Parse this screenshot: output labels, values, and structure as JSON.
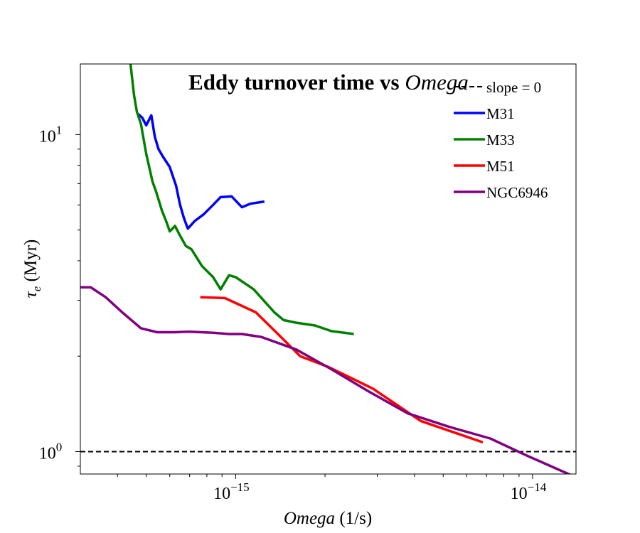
{
  "chart_data": {
    "type": "line",
    "title": "Eddy turnover time vs ",
    "title_italic": "Omega",
    "xlabel_italic": "Omega",
    "xlabel_rest": " (1/s)",
    "ylabel_sym": "τ",
    "ylabel_sub": "e",
    "ylabel_rest": " (Myr)",
    "xscale": "log",
    "yscale": "log",
    "xlim": [
      3e-16,
      1.4e-14
    ],
    "ylim": [
      0.85,
      16.7
    ],
    "x_ticks": [
      {
        "base": "10",
        "exp": "−15",
        "value": 1e-15
      },
      {
        "base": "10",
        "exp": "−14",
        "value": 1e-14
      }
    ],
    "y_ticks": [
      {
        "base": "10",
        "exp": "0",
        "value": 1
      },
      {
        "base": "10",
        "exp": "1",
        "value": 10
      }
    ],
    "legend_position": "top-right",
    "grid": false,
    "reference_line": {
      "name": "slope = 0",
      "y": 1.0,
      "color": "#000000",
      "style": "dashed"
    },
    "series": [
      {
        "name": "M31",
        "color": "#0000ff",
        "x": [
          4.7e-16,
          4.85e-16,
          5e-16,
          5.2e-16,
          5.35e-16,
          5.5e-16,
          5.7e-16,
          6e-16,
          6.3e-16,
          6.5e-16,
          6.7e-16,
          6.9e-16,
          7.3e-16,
          7.8e-16,
          8.4e-16,
          8.9e-16,
          9.7e-16,
          1.05e-15,
          1.12e-15,
          1.25e-15
        ],
        "y": [
          11.6,
          11.3,
          10.7,
          11.5,
          9.8,
          9.0,
          8.5,
          7.9,
          6.9,
          6.0,
          5.45,
          5.05,
          5.35,
          5.6,
          6.0,
          6.35,
          6.38,
          5.9,
          6.05,
          6.15
        ]
      },
      {
        "name": "M33",
        "color": "#008000",
        "x": [
          4.4e-16,
          4.55e-16,
          4.65e-16,
          4.8e-16,
          5e-16,
          5.25e-16,
          5.4e-16,
          5.65e-16,
          5.85e-16,
          6e-16,
          6.25e-16,
          6.5e-16,
          6.8e-16,
          7.1e-16,
          7.7e-16,
          8.4e-16,
          8.9e-16,
          9.5e-16,
          1e-15,
          1.15e-15,
          1.35e-15,
          1.45e-15,
          1.6e-15,
          1.85e-15,
          2.1e-15,
          2.5e-15
        ],
        "y": [
          17.5,
          13.3,
          11.8,
          10.8,
          8.7,
          7.1,
          6.6,
          5.75,
          5.3,
          4.95,
          5.15,
          4.8,
          4.45,
          4.35,
          3.85,
          3.55,
          3.25,
          3.6,
          3.55,
          3.25,
          2.75,
          2.6,
          2.55,
          2.5,
          2.4,
          2.35
        ]
      },
      {
        "name": "M51",
        "color": "#ff0000",
        "x": [
          7.6e-16,
          9.2e-16,
          1.17e-15,
          1.42e-15,
          1.65e-15,
          2.05e-15,
          2.9e-15,
          4.2e-15,
          6.8e-15
        ],
        "y": [
          3.07,
          3.05,
          2.75,
          2.3,
          2.0,
          1.85,
          1.58,
          1.25,
          1.07
        ]
      },
      {
        "name": "NGC6946",
        "color": "#800080",
        "x": [
          3e-16,
          3.25e-16,
          3.65e-16,
          4.15e-16,
          4.8e-16,
          5.45e-16,
          6.2e-16,
          7e-16,
          8.4e-16,
          9.5e-16,
          1.05e-15,
          1.22e-15,
          1.6e-15,
          2.1e-15,
          2.8e-15,
          3.8e-15,
          5.2e-15,
          7.2e-15,
          9.6e-15,
          1.4e-14
        ],
        "y": [
          3.3,
          3.3,
          3.07,
          2.75,
          2.45,
          2.38,
          2.38,
          2.39,
          2.37,
          2.35,
          2.35,
          2.3,
          2.1,
          1.82,
          1.55,
          1.32,
          1.2,
          1.1,
          0.97,
          0.83
        ]
      }
    ]
  }
}
